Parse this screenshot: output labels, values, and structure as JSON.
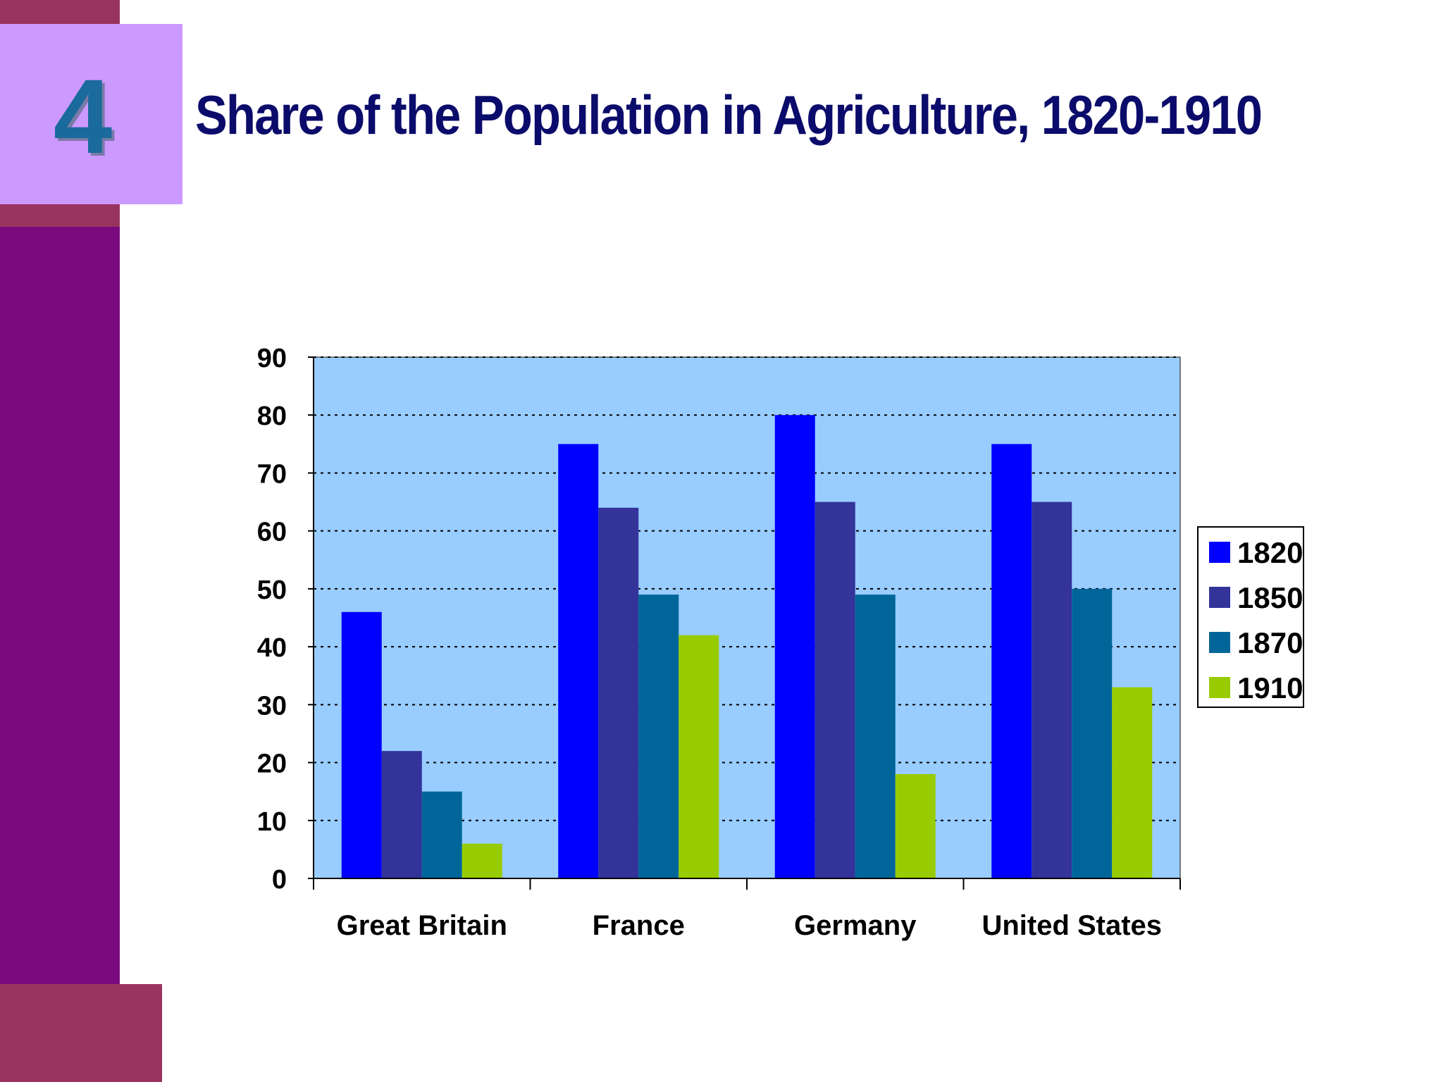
{
  "slide": {
    "number": "4",
    "title": "Share of the Population in Agriculture, 1820-1910"
  },
  "colors": {
    "sidebar": "#7a0a7e",
    "accent_band": "#99335f",
    "badge_bg": "#cc99ff",
    "badge_text": "#1a6a9b",
    "title_text": "#0b0b6b",
    "plot_bg": "#99ccff"
  },
  "chart_data": {
    "type": "bar",
    "title": "",
    "xlabel": "",
    "ylabel": "",
    "categories": [
      "Great Britain",
      "France",
      "Germany",
      "United States"
    ],
    "ylim": [
      0,
      90
    ],
    "yticks": [
      0,
      10,
      20,
      30,
      40,
      50,
      60,
      70,
      80,
      90
    ],
    "grid": true,
    "legend_position": "right",
    "series": [
      {
        "name": "1820",
        "color": "#0000ff",
        "values": [
          46,
          75,
          80,
          75
        ]
      },
      {
        "name": "1850",
        "color": "#333399",
        "values": [
          22,
          64,
          65,
          65
        ]
      },
      {
        "name": "1870",
        "color": "#006699",
        "values": [
          15,
          49,
          49,
          50
        ]
      },
      {
        "name": "1910",
        "color": "#99cc00",
        "values": [
          6,
          42,
          18,
          33
        ]
      }
    ]
  }
}
